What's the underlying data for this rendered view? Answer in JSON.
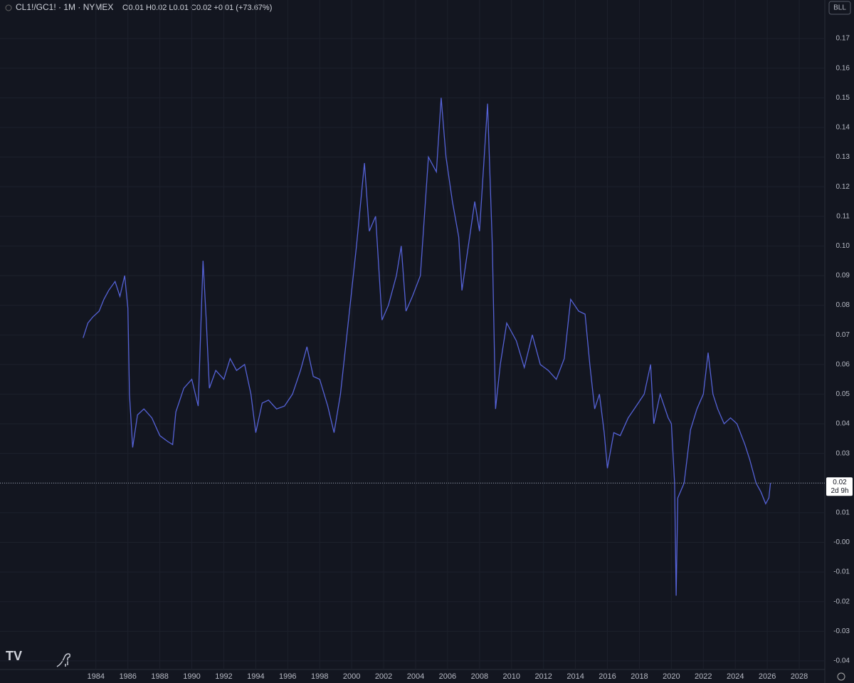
{
  "chart_data": {
    "type": "line",
    "symbol": "CL1!/GC1! · 1M · NYMEX",
    "ohlc_text": "O0.01 H0.02 L0.01 C0.02 +0.01 (+73.67%)",
    "button": "BLL",
    "last_price": 0.02,
    "countdown": "2d 9h",
    "grid": true,
    "xlim": [
      1978,
      2029.6
    ],
    "ylim": [
      -0.0429,
      0.183
    ],
    "xticks": [
      1984,
      1986,
      1988,
      1990,
      1992,
      1994,
      1996,
      1998,
      2000,
      2002,
      2004,
      2006,
      2008,
      2010,
      2012,
      2014,
      2016,
      2018,
      2020,
      2022,
      2024,
      2026,
      2028
    ],
    "yticks": [
      -0.04,
      -0.03,
      -0.02,
      -0.01,
      {
        "value": 0,
        "label": "-0.00"
      },
      0.01,
      0.02,
      0.03,
      0.04,
      0.05,
      0.06,
      0.07,
      0.08,
      0.09,
      {
        "value": 0.1,
        "label": "0.10"
      },
      0.11,
      0.12,
      0.13,
      0.14,
      0.15,
      0.16,
      0.17
    ],
    "x": [
      1983.2,
      1983.5,
      1983.8,
      1984.2,
      1984.5,
      1984.8,
      1985.2,
      1985.5,
      1985.8,
      1986.0,
      1986.1,
      1986.3,
      1986.6,
      1987.0,
      1987.5,
      1988.0,
      1988.5,
      1988.8,
      1989.0,
      1989.5,
      1990.0,
      1990.4,
      1990.7,
      1990.9,
      1991.1,
      1991.5,
      1992.0,
      1992.4,
      1992.8,
      1993.3,
      1993.7,
      1994.0,
      1994.4,
      1994.8,
      1995.3,
      1995.8,
      1996.3,
      1996.8,
      1997.2,
      1997.6,
      1998.0,
      1998.5,
      1998.9,
      1999.3,
      1999.8,
      2000.3,
      2000.8,
      2001.1,
      2001.5,
      2001.9,
      2002.3,
      2002.8,
      2003.1,
      2003.4,
      2003.8,
      2004.3,
      2004.8,
      2005.3,
      2005.6,
      2005.9,
      2006.3,
      2006.7,
      2006.9,
      2007.3,
      2007.7,
      2008.0,
      2008.5,
      2008.8,
      2009.0,
      2009.3,
      2009.7,
      2010.3,
      2010.8,
      2011.3,
      2011.8,
      2012.3,
      2012.8,
      2013.3,
      2013.7,
      2014.2,
      2014.6,
      2014.9,
      2015.2,
      2015.5,
      2015.8,
      2016.0,
      2016.4,
      2016.8,
      2017.3,
      2017.8,
      2018.3,
      2018.7,
      2018.9,
      2019.3,
      2019.8,
      2020.0,
      2020.2,
      2020.3,
      2020.4,
      2020.8,
      2021.2,
      2021.6,
      2022.0,
      2022.3,
      2022.6,
      2022.9,
      2023.3,
      2023.7,
      2024.1,
      2024.6,
      2024.9,
      2025.3,
      2025.6,
      2025.9,
      2026.1,
      2026.2
    ],
    "series": [
      {
        "color": "#5562d6",
        "values": [
          0.069,
          0.074,
          0.076,
          0.078,
          0.082,
          0.085,
          0.088,
          0.083,
          0.09,
          0.079,
          0.05,
          0.032,
          0.043,
          0.045,
          0.042,
          0.036,
          0.034,
          0.033,
          0.044,
          0.052,
          0.055,
          0.046,
          0.095,
          0.075,
          0.052,
          0.058,
          0.055,
          0.062,
          0.058,
          0.06,
          0.05,
          0.037,
          0.047,
          0.048,
          0.045,
          0.046,
          0.05,
          0.058,
          0.066,
          0.056,
          0.055,
          0.046,
          0.037,
          0.05,
          0.075,
          0.1,
          0.128,
          0.105,
          0.11,
          0.075,
          0.08,
          0.09,
          0.1,
          0.078,
          0.083,
          0.09,
          0.13,
          0.125,
          0.15,
          0.13,
          0.115,
          0.103,
          0.085,
          0.1,
          0.115,
          0.105,
          0.148,
          0.1,
          0.045,
          0.06,
          0.074,
          0.068,
          0.059,
          0.07,
          0.06,
          0.058,
          0.055,
          0.062,
          0.082,
          0.078,
          0.077,
          0.06,
          0.045,
          0.05,
          0.037,
          0.025,
          0.037,
          0.036,
          0.042,
          0.046,
          0.05,
          0.06,
          0.04,
          0.05,
          0.042,
          0.04,
          0.02,
          -0.018,
          0.015,
          0.02,
          0.038,
          0.045,
          0.05,
          0.064,
          0.05,
          0.045,
          0.04,
          0.042,
          0.04,
          0.033,
          0.028,
          0.02,
          0.017,
          0.013,
          0.015,
          0.02
        ]
      }
    ]
  }
}
